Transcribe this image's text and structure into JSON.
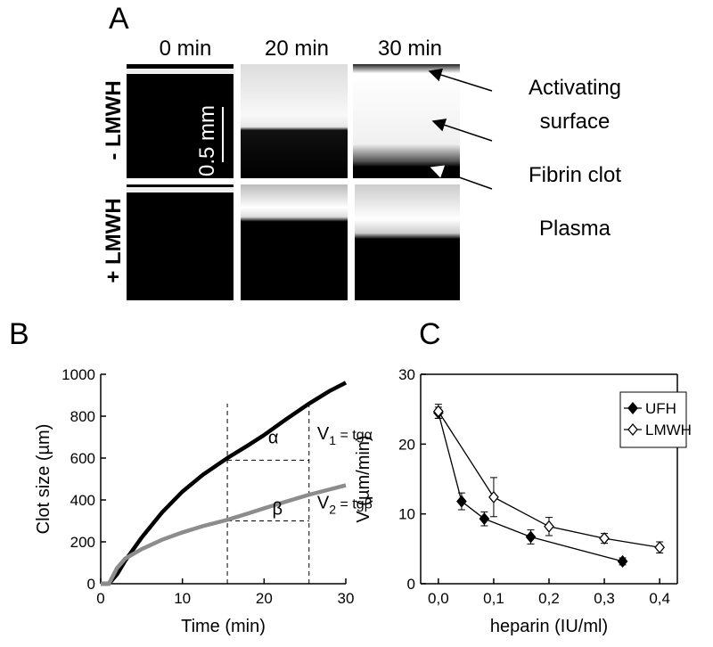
{
  "panel_labels": [
    "A",
    "B",
    "C"
  ],
  "panel_a": {
    "times": [
      "0 min",
      "20 min",
      "30 min"
    ],
    "rows": [
      "- LMWH",
      "+ LMWH"
    ],
    "scale_bar": "0.5 mm",
    "annotations": [
      "Activating",
      "surface",
      "Fibrin clot",
      "Plasma"
    ]
  },
  "chart_data": [
    {
      "type": "line",
      "xlabel": "Time (min)",
      "ylabel": "Clot size (µm)",
      "x": [
        0,
        1,
        2,
        3,
        5,
        7.5,
        10,
        12.5,
        15.5,
        18,
        20,
        22.5,
        25.5,
        28,
        30
      ],
      "series": [
        {
          "color": "#000000",
          "values": [
            0,
            0,
            45,
            110,
            220,
            340,
            440,
            520,
            600,
            660,
            710,
            780,
            860,
            920,
            960
          ]
        },
        {
          "color": "#8c8c8c",
          "values": [
            0,
            0,
            75,
            120,
            165,
            210,
            245,
            275,
            305,
            335,
            360,
            390,
            425,
            450,
            470
          ]
        }
      ],
      "xlim": [
        0,
        30
      ],
      "ylim": [
        0,
        1000
      ],
      "xticks": [
        0,
        10,
        20,
        30
      ],
      "yticks": [
        0,
        200,
        400,
        600,
        800,
        1000
      ],
      "dashed_lines": [
        [
          15.5,
          0,
          15.5,
          860
        ],
        [
          25.5,
          0,
          25.5,
          860
        ],
        [
          15.5,
          590,
          25.5,
          590
        ],
        [
          15.5,
          300,
          25.5,
          300
        ]
      ],
      "annotations": [
        {
          "text": "α",
          "x": 20.5,
          "y": 670
        },
        {
          "text": "β",
          "x": 21,
          "y": 330
        },
        {
          "main": "V",
          "sub": "1",
          "rest": " = tgα",
          "x": 26.5,
          "y": 690
        },
        {
          "main": "V",
          "sub": "2",
          "rest": " = tgβ",
          "x": 26.5,
          "y": 360
        }
      ]
    },
    {
      "type": "line",
      "xlabel": "heparin (IU/ml)",
      "ylabel": "V (µm/min)",
      "series": [
        {
          "name": "UFH",
          "color": "#000000",
          "marker": "filled",
          "x": [
            0,
            0.042,
            0.083,
            0.167,
            0.333
          ],
          "values": [
            24.5,
            11.8,
            9.3,
            6.7,
            3.2
          ],
          "errors": [
            0.8,
            1.2,
            1.0,
            1.0,
            0.5
          ]
        },
        {
          "name": "LMWH",
          "color": "#000000",
          "marker": "open",
          "x": [
            0,
            0.1,
            0.2,
            0.3,
            0.4
          ],
          "values": [
            24.7,
            12.4,
            8.2,
            6.5,
            5.2
          ],
          "errors": [
            1.0,
            2.8,
            1.3,
            0.7,
            0.8
          ]
        }
      ],
      "xlim": [
        -0.032,
        0.432
      ],
      "ylim": [
        0,
        30
      ],
      "xticks": [
        {
          "value": 0,
          "label": "0,0"
        },
        {
          "value": 0.1,
          "label": "0,1"
        },
        {
          "value": 0.2,
          "label": "0,2"
        },
        {
          "value": 0.3,
          "label": "0,3"
        },
        {
          "value": 0.4,
          "label": "0,4"
        }
      ],
      "yticks": [
        0,
        10,
        20,
        30
      ],
      "legend": "top-right"
    }
  ]
}
